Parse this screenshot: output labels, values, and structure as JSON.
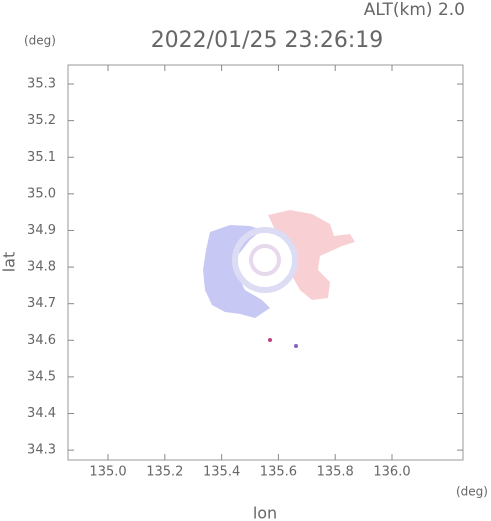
{
  "chart_data": {
    "type": "radar-map",
    "title": "2022/01/25 23:26:19",
    "altitude_label": "ALT(km) 2.0",
    "x_label": "lon",
    "y_label": "lat",
    "x_unit": "(deg)",
    "y_unit": "(deg)",
    "xlim": [
      134.859,
      136.25
    ],
    "ylim": [
      34.273,
      35.352
    ],
    "xticks": [
      {
        "value": 135.0,
        "label": "135.0"
      },
      135.2,
      135.4,
      135.6,
      135.8,
      {
        "value": 136.0,
        "label": "136.0"
      }
    ],
    "yticks": [
      34.3,
      34.4,
      34.5,
      34.6,
      34.7,
      34.8,
      34.9,
      {
        "value": 35.0,
        "label": "35.0"
      },
      35.1,
      35.2,
      35.3
    ]
  }
}
